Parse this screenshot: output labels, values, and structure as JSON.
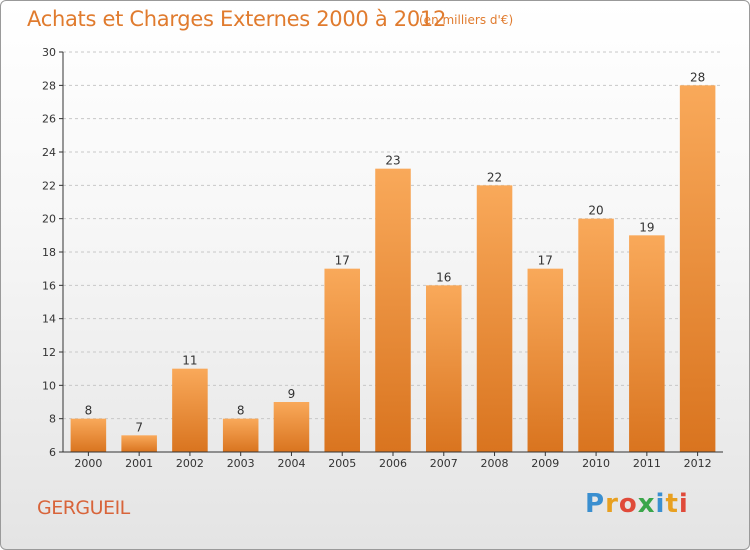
{
  "header": {
    "title": "Achats et Charges Externes 2000 à 2012",
    "subtitle": "(en milliers d'€)"
  },
  "footer": {
    "place": "GERGUEIL",
    "brand": "Proxiti"
  },
  "colors": {
    "title": "#e07b2e",
    "bar_top": "#f9a95a",
    "bar_bottom": "#d9741f",
    "axis": "#333333",
    "grid": "#c8c8c8"
  },
  "chart_data": {
    "type": "bar",
    "title": "Achats et Charges Externes 2000 à 2012",
    "subtitle": "(en milliers d'€)",
    "categories": [
      "2000",
      "2001",
      "2002",
      "2003",
      "2004",
      "2005",
      "2006",
      "2007",
      "2008",
      "2009",
      "2010",
      "2011",
      "2012"
    ],
    "values": [
      8,
      7,
      11,
      8,
      9,
      17,
      23,
      16,
      22,
      17,
      20,
      19,
      28
    ],
    "ylim": [
      6,
      30
    ],
    "yticks": [
      6,
      8,
      10,
      12,
      14,
      16,
      18,
      20,
      22,
      24,
      26,
      28,
      30
    ],
    "grid": "horizontal dashed",
    "legend": "none",
    "data_labels": true
  }
}
